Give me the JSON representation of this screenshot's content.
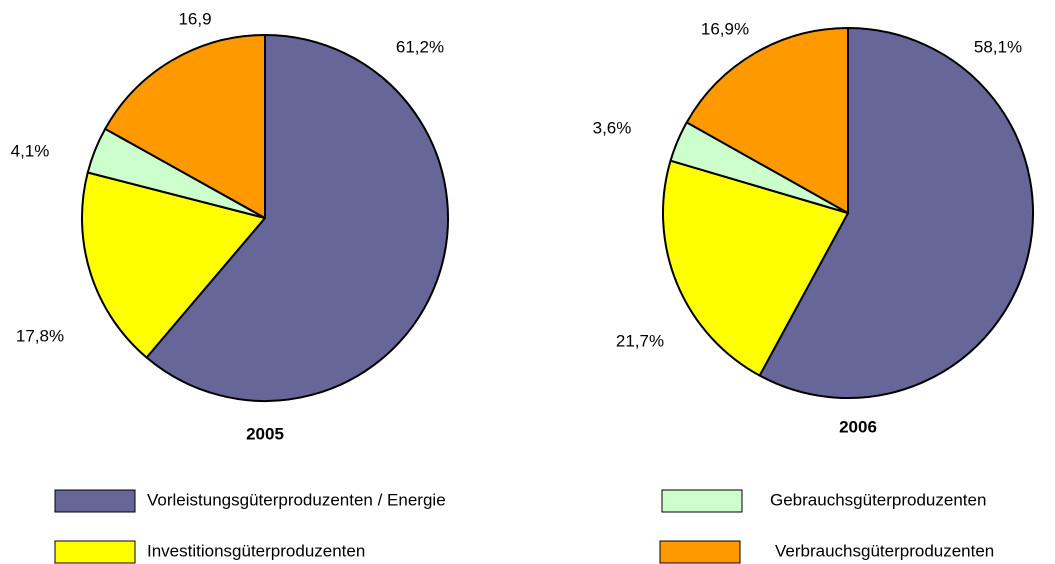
{
  "chart_data": [
    {
      "type": "pie",
      "title": "2005",
      "categories": [
        "Vorleistungsgüterproduzenten / Energie",
        "Investitionsgüterproduzenten",
        "Gebrauchsgüterproduzenten",
        "Verbrauchsgüterproduzenten"
      ],
      "colors": [
        "#666699",
        "#ffff00",
        "#ccffcc",
        "#ff9900"
      ],
      "values": [
        61.2,
        17.8,
        4.1,
        16.9
      ],
      "value_labels": [
        "61,2%",
        "17,8%",
        "4,1%",
        "16,9"
      ]
    },
    {
      "type": "pie",
      "title": "2006",
      "values": [
        58.1,
        21.7,
        3.6,
        16.9
      ],
      "value_labels": [
        "58,1%",
        "21,7%",
        "3,6%",
        "16,9%"
      ]
    }
  ]
}
